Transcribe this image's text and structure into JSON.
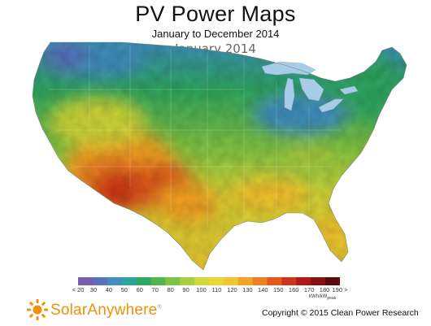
{
  "header": {
    "title": "PV Power Maps",
    "subtitle": "January to December 2014",
    "period": "January 2014"
  },
  "legend": {
    "ticks": [
      "< 20",
      "30",
      "40",
      "50",
      "60",
      "70",
      "80",
      "90",
      "100",
      "110",
      "120",
      "130",
      "140",
      "150",
      "160",
      "170",
      "180",
      "190 >"
    ],
    "unit_main": "kWh/kW",
    "unit_sub": "peak",
    "colors": [
      "#7b5cb0",
      "#5c70c0",
      "#3f8fc0",
      "#2aa5a0",
      "#2ea860",
      "#4db848",
      "#7cc444",
      "#a8cf40",
      "#cfd838",
      "#ebd734",
      "#f5c32c",
      "#f4a424",
      "#ef8020",
      "#e4581c",
      "#cf3418",
      "#b11a14",
      "#8a0f10",
      "#5e0a0a"
    ]
  },
  "brand": {
    "logo_name": "SolarAnywhere",
    "logo_mark": "®",
    "accent": "#f0900a"
  },
  "footer": {
    "copyright": "Copyright © 2015 Clean Power Research"
  },
  "map": {
    "region": "Contiguous United States",
    "water_color": "#a8cbe8",
    "land_fill": "pv-power-heatmap"
  }
}
